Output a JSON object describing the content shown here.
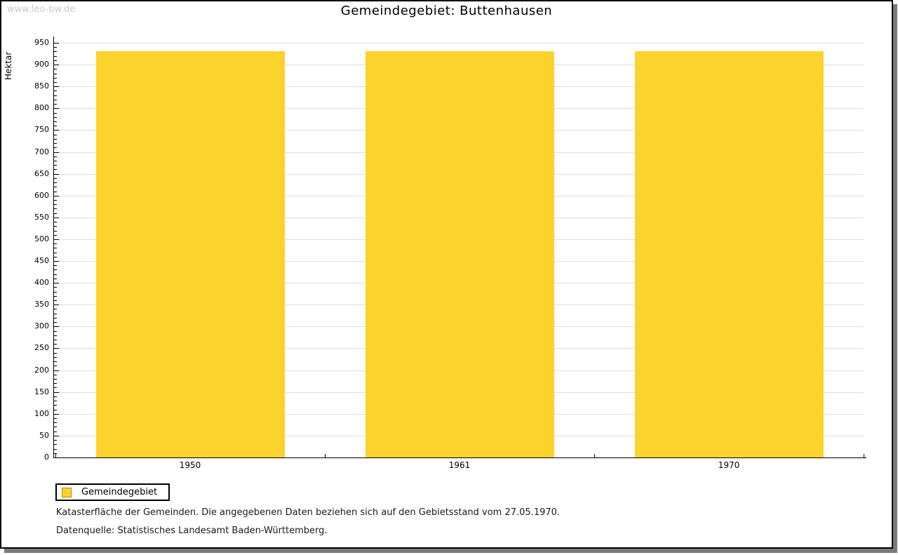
{
  "watermark": "www.leo-bw.de",
  "title": "Gemeindegebiet: Buttenhausen",
  "chart_data": {
    "type": "bar",
    "title": "Gemeindegebiet: Buttenhausen",
    "categories": [
      "1950",
      "1961",
      "1970"
    ],
    "series": [
      {
        "name": "Gemeindegebiet",
        "values": [
          931,
          931,
          931
        ]
      }
    ],
    "xlabel": "",
    "ylabel": "Hektar",
    "ylim": [
      0,
      950
    ],
    "ytick_step": 50,
    "minor_tick_step": 10,
    "grid": true,
    "bar_color": "#fcd32d",
    "legend_position": "bottom-left"
  },
  "legend": {
    "items": [
      {
        "label": "Gemeindegebiet",
        "color": "#fcd32d",
        "border_color": "#b8860b"
      }
    ]
  },
  "footnotes": [
    "Katasterfläche der Gemeinden. Die angegebenen Daten beziehen sich auf den Gebietsstand vom 27.05.1970.",
    "Datenquelle: Statistisches Landesamt Baden-Württemberg."
  ],
  "colors": {
    "bar": "#fcd32d",
    "gridline": "#dddddd",
    "axis": "#000000",
    "watermark": "#c9c9c9",
    "frame_shadow": "#7b7b7b"
  }
}
